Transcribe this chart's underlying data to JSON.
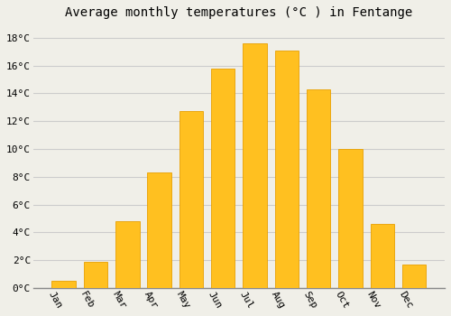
{
  "title": "Average monthly temperatures (°C ) in Fentange",
  "months": [
    "Jan",
    "Feb",
    "Mar",
    "Apr",
    "May",
    "Jun",
    "Jul",
    "Aug",
    "Sep",
    "Oct",
    "Nov",
    "Dec"
  ],
  "values": [
    0.5,
    1.9,
    4.8,
    8.3,
    12.7,
    15.8,
    17.6,
    17.1,
    14.3,
    10.0,
    4.6,
    1.7
  ],
  "bar_color": "#FFC020",
  "bar_edge_color": "#E8A000",
  "background_color": "#F0EFE8",
  "grid_color": "#CCCCCC",
  "ylim": [
    0,
    19
  ],
  "yticks": [
    0,
    2,
    4,
    6,
    8,
    10,
    12,
    14,
    16,
    18
  ],
  "ytick_labels": [
    "0°C",
    "2°C",
    "4°C",
    "6°C",
    "8°C",
    "10°C",
    "12°C",
    "14°C",
    "16°C",
    "18°C"
  ],
  "title_fontsize": 10,
  "tick_fontsize": 8,
  "font_family": "monospace"
}
